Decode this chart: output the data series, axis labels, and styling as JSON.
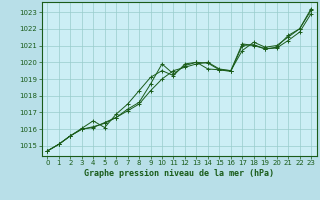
{
  "title": "Graphe pression niveau de la mer (hPa)",
  "background_color": "#b8dfe8",
  "plot_bg_color": "#cceef5",
  "grid_color": "#99cccc",
  "line_color": "#1a5c1a",
  "xlabel_color": "#1a5c1a",
  "ylim": [
    1014.4,
    1023.6
  ],
  "xlim": [
    -0.5,
    23.5
  ],
  "yticks": [
    1015,
    1016,
    1017,
    1018,
    1019,
    1020,
    1021,
    1022,
    1023
  ],
  "xticks": [
    0,
    1,
    2,
    3,
    4,
    5,
    6,
    7,
    8,
    9,
    10,
    11,
    12,
    13,
    14,
    15,
    16,
    17,
    18,
    19,
    20,
    21,
    22,
    23
  ],
  "series": [
    [
      1014.7,
      1015.1,
      1015.6,
      1016.0,
      1016.1,
      1016.4,
      1016.7,
      1017.1,
      1017.5,
      1018.3,
      1019.0,
      1019.5,
      1019.7,
      1019.9,
      1020.0,
      1019.6,
      1019.5,
      1020.7,
      1021.2,
      1020.9,
      1021.0,
      1021.5,
      1022.0,
      1023.2
    ],
    [
      1014.7,
      1015.1,
      1015.6,
      1016.0,
      1016.15,
      1016.35,
      1016.7,
      1017.2,
      1017.6,
      1018.7,
      1019.9,
      1019.3,
      1019.8,
      1020.0,
      1019.95,
      1019.55,
      1019.45,
      1021.0,
      1021.05,
      1020.8,
      1020.85,
      1021.3,
      1021.8,
      1022.9
    ],
    [
      1014.7,
      1015.1,
      1015.6,
      1016.05,
      1016.5,
      1016.1,
      1016.9,
      1017.5,
      1018.3,
      1019.1,
      1019.5,
      1019.2,
      1019.9,
      1020.0,
      1019.6,
      1019.55,
      1019.5,
      1021.1,
      1021.0,
      1020.8,
      1020.9,
      1021.6,
      1022.0,
      1023.1
    ]
  ]
}
